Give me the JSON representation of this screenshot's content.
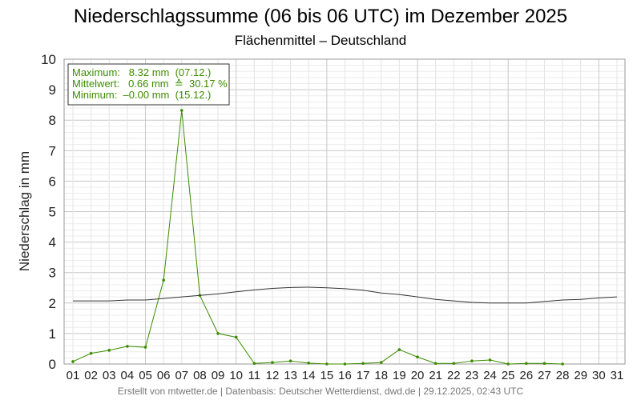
{
  "chart_data": {
    "type": "line",
    "title": "Niederschlagssumme (06 bis 06 UTC) im Dezember 2025",
    "subtitle": "Flächenmittel – Deutschland",
    "ylabel": "Niederschlag in mm",
    "xlabel": "",
    "ylim": [
      0,
      10
    ],
    "yticks": [
      "0",
      "1",
      "2",
      "3",
      "4",
      "5",
      "6",
      "7",
      "8",
      "9",
      "10"
    ],
    "categories": [
      "01",
      "02",
      "03",
      "04",
      "05",
      "06",
      "07",
      "08",
      "09",
      "10",
      "11",
      "12",
      "13",
      "14",
      "15",
      "16",
      "17",
      "18",
      "19",
      "20",
      "21",
      "22",
      "23",
      "24",
      "25",
      "26",
      "27",
      "28",
      "29",
      "30",
      "31"
    ],
    "series": [
      {
        "color": "#3c8c00",
        "values": [
          0.08,
          0.35,
          0.45,
          0.58,
          0.55,
          2.75,
          8.32,
          2.25,
          1.0,
          0.88,
          0.02,
          0.05,
          0.1,
          0.03,
          0.0,
          -0.0,
          0.02,
          0.05,
          0.47,
          0.23,
          0.02,
          0.02,
          0.1,
          0.13,
          0.0,
          0.02,
          0.02,
          0.0,
          null,
          null,
          null
        ]
      },
      {
        "color": "#333333",
        "values": [
          2.07,
          2.07,
          2.07,
          2.1,
          2.1,
          2.15,
          2.2,
          2.25,
          2.3,
          2.37,
          2.43,
          2.48,
          2.51,
          2.52,
          2.5,
          2.47,
          2.42,
          2.33,
          2.28,
          2.2,
          2.12,
          2.07,
          2.02,
          2.0,
          2.0,
          2.0,
          2.05,
          2.1,
          2.12,
          2.17,
          2.2
        ]
      }
    ],
    "grid": true,
    "legend": {
      "position": "top-left",
      "lines": [
        "Maximum:   8.32 mm  (07.12.)",
        "Mittelwert:   0.66 mm  ≙  30.17 %",
        "Minimum:  –0.00 mm  (15.12.)"
      ]
    },
    "footer": "Erstellt von mtwetter.de | Datenbasis: Deutscher Wetterdienst, dwd.de | 29.12.2025, 02:43 UTC"
  }
}
